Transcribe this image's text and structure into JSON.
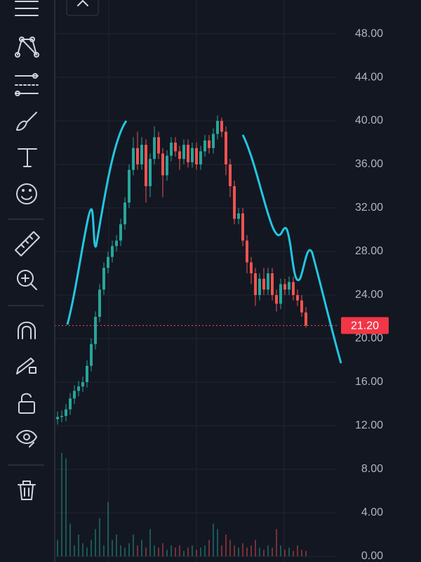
{
  "chart_data": {
    "type": "candlestick",
    "series": {
      "open": [
        12.6,
        12.8,
        12.9,
        13.5,
        14.5,
        15.2,
        15.6,
        16.0,
        17.5,
        19.5,
        22.0,
        24.5,
        26.5,
        27.5,
        28.5,
        29.0,
        30.5,
        32.5,
        35.5,
        37.5,
        36.0,
        37.8,
        34.0,
        36.5,
        38.5,
        37.0,
        35.0,
        36.8,
        38.0,
        37.2,
        36.5,
        37.8,
        36.2,
        37.5,
        36.0,
        37.2,
        38.2,
        37.5,
        38.8,
        40.0,
        39.0,
        36.0,
        34.0,
        31.0,
        31.5,
        29.0,
        27.0,
        26.0,
        24.0,
        25.5,
        24.5,
        26.0,
        24.0,
        23.2,
        25.0,
        24.5,
        25.2,
        24.0,
        23.5,
        22.4
      ],
      "high": [
        13.3,
        13.4,
        14.0,
        15.0,
        15.7,
        16.1,
        16.5,
        18.0,
        20.0,
        22.5,
        25.0,
        27.0,
        28.0,
        29.0,
        29.5,
        31.0,
        33.0,
        36.0,
        38.5,
        39.0,
        38.5,
        38.3,
        37.0,
        39.5,
        39.0,
        37.5,
        37.3,
        38.5,
        38.5,
        37.7,
        38.3,
        38.3,
        38.0,
        38.0,
        37.7,
        38.7,
        38.7,
        39.3,
        40.5,
        40.3,
        39.5,
        36.5,
        34.5,
        32.0,
        32.0,
        29.5,
        27.5,
        26.5,
        26.0,
        26.5,
        26.5,
        26.5,
        24.5,
        25.5,
        25.5,
        25.7,
        25.7,
        24.5,
        24.0,
        22.9
      ],
      "low": [
        12.1,
        12.3,
        12.4,
        13.0,
        14.0,
        14.7,
        15.1,
        15.5,
        17.0,
        19.0,
        21.5,
        24.0,
        26.0,
        27.0,
        28.0,
        28.5,
        30.0,
        32.0,
        35.0,
        35.5,
        35.5,
        32.5,
        33.0,
        36.0,
        36.5,
        33.0,
        34.5,
        36.3,
        36.7,
        35.5,
        36.0,
        35.7,
        35.7,
        35.5,
        35.5,
        36.7,
        37.0,
        37.0,
        38.3,
        38.5,
        35.0,
        33.0,
        30.5,
        30.5,
        28.5,
        26.0,
        25.0,
        23.0,
        23.5,
        24.0,
        24.0,
        23.5,
        22.5,
        22.7,
        24.0,
        24.0,
        23.5,
        23.0,
        22.0,
        21.0
      ],
      "close": [
        12.8,
        12.9,
        13.5,
        14.5,
        15.2,
        15.6,
        16.0,
        17.5,
        19.5,
        22.0,
        24.5,
        26.5,
        27.5,
        28.5,
        29.0,
        30.5,
        32.5,
        35.5,
        37.5,
        36.0,
        37.8,
        34.0,
        36.5,
        38.5,
        37.0,
        35.0,
        36.8,
        38.0,
        37.2,
        36.5,
        37.8,
        36.2,
        37.5,
        36.0,
        37.2,
        38.2,
        37.5,
        38.8,
        40.0,
        39.0,
        36.0,
        34.0,
        31.0,
        31.5,
        29.0,
        27.0,
        26.0,
        24.0,
        25.5,
        24.5,
        26.0,
        24.0,
        23.2,
        25.0,
        24.5,
        25.2,
        24.0,
        23.5,
        22.4,
        21.2
      ],
      "volume": [
        1.5,
        9.5,
        9.0,
        3.0,
        1.0,
        2.0,
        1.2,
        0.8,
        1.5,
        2.5,
        3.5,
        1.0,
        5.0,
        1.5,
        2.0,
        1.0,
        0.8,
        1.2,
        2.0,
        1.0,
        1.5,
        0.8,
        2.5,
        1.0,
        0.8,
        1.2,
        0.6,
        1.0,
        0.8,
        1.0,
        0.5,
        0.8,
        1.0,
        0.6,
        0.8,
        1.0,
        1.5,
        3.0,
        2.5,
        1.0,
        2.0,
        1.5,
        1.0,
        0.8,
        1.2,
        0.8,
        1.0,
        1.5,
        0.8,
        0.6,
        1.0,
        0.8,
        2.5,
        1.0,
        0.6,
        0.8,
        0.5,
        1.0,
        0.6,
        0.5
      ]
    },
    "up_color": "#26a69a",
    "down_color": "#ef5350",
    "last_price": {
      "value": 21.2,
      "label": "21.20"
    },
    "ylim": [
      -0.52,
      51.1
    ],
    "yticks": [
      {
        "value": 0,
        "label": "0.00"
      },
      {
        "value": 4,
        "label": "4.00"
      },
      {
        "value": 8,
        "label": "8.00"
      },
      {
        "value": 12,
        "label": "12.00"
      },
      {
        "value": 16,
        "label": "16.00"
      },
      {
        "value": 20,
        "label": "20.00"
      },
      {
        "value": 24,
        "label": "24.00"
      },
      {
        "value": 28,
        "label": "28.00"
      },
      {
        "value": 32,
        "label": "32.00"
      },
      {
        "value": 36,
        "label": "36.00"
      },
      {
        "value": 40,
        "label": "40.00"
      },
      {
        "value": 44,
        "label": "44.00"
      },
      {
        "value": 48,
        "label": "48.00"
      }
    ],
    "grid": true
  }
}
